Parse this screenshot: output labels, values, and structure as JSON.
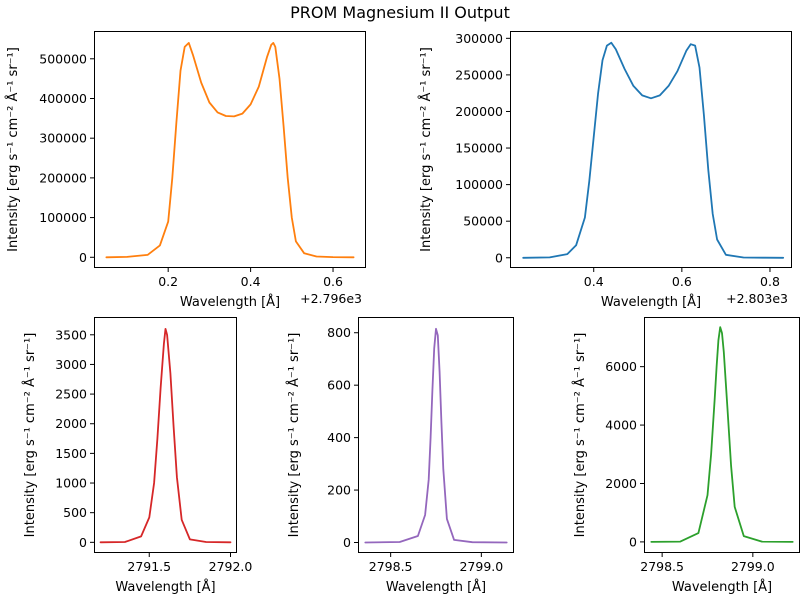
{
  "figure": {
    "title": "PROM Magnesium II Output"
  },
  "chart_data": [
    {
      "type": "line",
      "xlabel": "Wavelength [Å]",
      "ylabel": "Intensity [erg s⁻¹ cm⁻² Å⁻¹ sr⁻¹]",
      "offset_text": "+2.796e3",
      "xlim": [
        0.02,
        0.68
      ],
      "ylim": [
        -27000,
        570000
      ],
      "x_ticks": [
        0.2,
        0.4,
        0.6
      ],
      "x_tick_labels": [
        "0.2",
        "0.4",
        "0.6"
      ],
      "y_ticks": [
        0,
        100000,
        200000,
        300000,
        400000,
        500000
      ],
      "y_tick_labels": [
        "0",
        "100000",
        "200000",
        "300000",
        "400000",
        "500000"
      ],
      "color": "#ff7f0e",
      "x": [
        0.05,
        0.1,
        0.15,
        0.18,
        0.2,
        0.21,
        0.22,
        0.23,
        0.24,
        0.25,
        0.26,
        0.28,
        0.3,
        0.32,
        0.34,
        0.36,
        0.38,
        0.4,
        0.42,
        0.44,
        0.45,
        0.455,
        0.46,
        0.47,
        0.48,
        0.49,
        0.5,
        0.51,
        0.53,
        0.56,
        0.6,
        0.65
      ],
      "y": [
        0,
        1000,
        6000,
        30000,
        90000,
        200000,
        340000,
        470000,
        530000,
        540000,
        510000,
        440000,
        390000,
        365000,
        356000,
        355000,
        362000,
        385000,
        430000,
        505000,
        535000,
        540000,
        530000,
        450000,
        330000,
        200000,
        100000,
        40000,
        10000,
        2000,
        500,
        0
      ]
    },
    {
      "type": "line",
      "xlabel": "Wavelength [Å]",
      "ylabel": "Intensity [erg s⁻¹ cm⁻² Å⁻¹ sr⁻¹]",
      "offset_text": "+2.803e3",
      "xlim": [
        0.21,
        0.85
      ],
      "ylim": [
        -14000,
        310000
      ],
      "x_ticks": [
        0.4,
        0.6,
        0.8
      ],
      "x_tick_labels": [
        "0.4",
        "0.6",
        "0.8"
      ],
      "y_ticks": [
        0,
        50000,
        100000,
        150000,
        200000,
        250000,
        300000
      ],
      "y_tick_labels": [
        "0",
        "50000",
        "100000",
        "150000",
        "200000",
        "250000",
        "300000"
      ],
      "color": "#1f77b4",
      "x": [
        0.24,
        0.3,
        0.34,
        0.36,
        0.38,
        0.39,
        0.4,
        0.41,
        0.42,
        0.43,
        0.44,
        0.45,
        0.47,
        0.49,
        0.51,
        0.53,
        0.55,
        0.57,
        0.59,
        0.61,
        0.62,
        0.63,
        0.64,
        0.65,
        0.66,
        0.67,
        0.68,
        0.7,
        0.74,
        0.79,
        0.83
      ],
      "y": [
        0,
        500,
        5000,
        17000,
        55000,
        105000,
        165000,
        225000,
        270000,
        290000,
        294000,
        285000,
        258000,
        235000,
        222000,
        218000,
        222000,
        235000,
        255000,
        283000,
        292000,
        290000,
        260000,
        195000,
        120000,
        60000,
        25000,
        4000,
        400,
        50,
        0
      ]
    },
    {
      "type": "line",
      "xlabel": "Wavelength [Å]",
      "ylabel": "Intensity [erg s⁻¹ cm⁻² Å⁻¹ sr⁻¹]",
      "xlim": [
        2791.16,
        2792.04
      ],
      "ylim": [
        -180,
        3800
      ],
      "x_ticks": [
        2791.5,
        2792.0
      ],
      "x_tick_labels": [
        "2791.5",
        "2792.0"
      ],
      "y_ticks": [
        0,
        500,
        1000,
        1500,
        2000,
        2500,
        3000,
        3500
      ],
      "y_tick_labels": [
        "0",
        "500",
        "1000",
        "1500",
        "2000",
        "2500",
        "3000",
        "3500"
      ],
      "color": "#d62728",
      "x": [
        2791.2,
        2791.35,
        2791.45,
        2791.5,
        2791.53,
        2791.55,
        2791.57,
        2791.59,
        2791.6,
        2791.61,
        2791.63,
        2791.65,
        2791.67,
        2791.7,
        2791.75,
        2791.85,
        2792.0
      ],
      "y": [
        0,
        5,
        100,
        420,
        1000,
        1750,
        2600,
        3350,
        3600,
        3500,
        2850,
        1950,
        1100,
        380,
        50,
        5,
        0
      ]
    },
    {
      "type": "line",
      "xlabel": "Wavelength [Å]",
      "ylabel": "Intensity [erg s⁻¹ cm⁻² Å⁻¹ sr⁻¹]",
      "xlim": [
        2798.32,
        2799.18
      ],
      "ylim": [
        -40,
        860
      ],
      "x_ticks": [
        2798.5,
        2799.0
      ],
      "x_tick_labels": [
        "2798.5",
        "2799.0"
      ],
      "y_ticks": [
        0,
        200,
        400,
        600,
        800
      ],
      "y_tick_labels": [
        "0",
        "200",
        "400",
        "600",
        "800"
      ],
      "color": "#9467bd",
      "x": [
        2798.36,
        2798.55,
        2798.65,
        2798.69,
        2798.71,
        2798.72,
        2798.73,
        2798.74,
        2798.75,
        2798.76,
        2798.77,
        2798.78,
        2798.79,
        2798.81,
        2798.85,
        2798.95,
        2799.14
      ],
      "y": [
        0,
        2,
        25,
        105,
        240,
        400,
        580,
        740,
        815,
        790,
        650,
        460,
        280,
        90,
        10,
        1,
        0
      ]
    },
    {
      "type": "line",
      "xlabel": "Wavelength [Å]",
      "ylabel": "Intensity [erg s⁻¹ cm⁻² Å⁻¹ sr⁻¹]",
      "xlim": [
        2798.4,
        2799.26
      ],
      "ylim": [
        -380,
        7700
      ],
      "x_ticks": [
        2798.5,
        2799.0
      ],
      "x_tick_labels": [
        "2798.5",
        "2799.0"
      ],
      "y_ticks": [
        0,
        2000,
        4000,
        6000
      ],
      "y_tick_labels": [
        "0",
        "2000",
        "4000",
        "6000"
      ],
      "color": "#2ca02c",
      "x": [
        2798.44,
        2798.6,
        2798.7,
        2798.75,
        2798.77,
        2798.79,
        2798.8,
        2798.81,
        2798.82,
        2798.83,
        2798.84,
        2798.86,
        2798.88,
        2798.9,
        2798.95,
        2799.05,
        2799.22
      ],
      "y": [
        0,
        10,
        300,
        1600,
        3000,
        4900,
        6000,
        6900,
        7350,
        7150,
        6500,
        4600,
        2600,
        1200,
        200,
        10,
        0
      ]
    }
  ]
}
